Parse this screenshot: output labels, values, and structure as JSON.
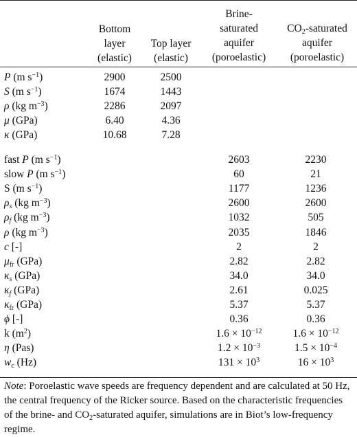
{
  "headers": {
    "col1": [
      "Bottom",
      "layer",
      "(elastic)"
    ],
    "col2": [
      "Top layer",
      "(elastic)"
    ],
    "col3": [
      "Brine-",
      "saturated",
      "aquifer",
      "(poroelastic)"
    ],
    "col4_line1_pre": "CO",
    "col4_line1_sub": "2",
    "col4_line1_post": "-saturated",
    "col4_rest": [
      "aquifer",
      "(poroelastic)"
    ]
  },
  "elastic_rows": [
    {
      "sym": "P",
      "unit": " (m s",
      "exp": "−1",
      "close": ")",
      "v1": "2900",
      "v2": "2500"
    },
    {
      "sym": "S",
      "unit": " (m s",
      "exp": "−1",
      "close": ")",
      "v1": "1674",
      "v2": "1443"
    },
    {
      "sym": "ρ",
      "unit": " (kg m",
      "exp": "−3",
      "close": ")",
      "v1": "2286",
      "v2": "2097"
    },
    {
      "sym": "μ",
      "unit": " (GPa)",
      "exp": "",
      "close": "",
      "v1": "6.40",
      "v2": "4.36"
    },
    {
      "sym": "κ",
      "unit": " (GPa)",
      "exp": "",
      "close": "",
      "v1": "10.68",
      "v2": "7.28"
    }
  ],
  "poro_rows": [
    {
      "pre": "fast ",
      "sym": "P",
      "sub": "",
      "unit": " (m s",
      "exp": "−1",
      "close": ")",
      "v3": "2603",
      "v4": "2230"
    },
    {
      "pre": "slow ",
      "sym": "P",
      "sub": "",
      "unit": " (m s",
      "exp": "−1",
      "close": ")",
      "v3": "60",
      "v4": "21"
    },
    {
      "pre": "S",
      "sym": "",
      "sub": "",
      "unit": " (m s",
      "exp": "−1",
      "close": ")",
      "v3": "1177",
      "v4": "1236"
    },
    {
      "pre": "",
      "sym": "ρ",
      "sub": "s",
      "unit": " (kg m",
      "exp": "−3",
      "close": ")",
      "v3": "2600",
      "v4": "2600"
    },
    {
      "pre": "",
      "sym": "ρ",
      "sub": "f",
      "unit": " (kg m",
      "exp": "−3",
      "close": ")",
      "v3": "1032",
      "v4": "505"
    },
    {
      "pre": "",
      "sym": "ρ",
      "sub": "",
      "unit": " (kg m",
      "exp": "−3",
      "close": ")",
      "v3": "2035",
      "v4": "1846"
    },
    {
      "pre": "",
      "sym": "c",
      "sub": "",
      "unit": " [-]",
      "exp": "",
      "close": "",
      "v3": "2",
      "v4": "2"
    },
    {
      "pre": "",
      "sym": "μ",
      "sub": "fr",
      "unit": " (GPa)",
      "exp": "",
      "close": "",
      "v3": "2.82",
      "v4": "2.82"
    },
    {
      "pre": "",
      "sym": "κ",
      "sub": "s",
      "unit": " (GPa)",
      "exp": "",
      "close": "",
      "v3": "34.0",
      "v4": "34.0"
    },
    {
      "pre": "",
      "sym": "κ",
      "sub": "f",
      "unit": " (GPa)",
      "exp": "",
      "close": "",
      "v3": "2.61",
      "v4": "0.025"
    },
    {
      "pre": "",
      "sym": "κ",
      "sub": "fr",
      "unit": " (GPa)",
      "exp": "",
      "close": "",
      "v3": "5.37",
      "v4": "5.37"
    },
    {
      "pre": "",
      "sym": "ϕ",
      "sub": "",
      "unit": " [-]",
      "exp": "",
      "close": "",
      "v3": "0.36",
      "v4": "0.36"
    },
    {
      "pre": "k",
      "sym": "",
      "sub": "",
      "unit": " (m",
      "exp": "2",
      "close": ")",
      "v3": "1.6 × 10",
      "v3e": "−12",
      "v4": "1.6 × 10",
      "v4e": "−12"
    },
    {
      "pre": "",
      "sym": "η",
      "sub": "",
      "unit": " (Pas)",
      "exp": "",
      "close": "",
      "v3": "1.2 × 10",
      "v3e": "−3",
      "v4": "1.5 × 10",
      "v4e": "−4"
    },
    {
      "pre": "",
      "sym": "w",
      "sub": "c",
      "unit": " (Hz)",
      "exp": "",
      "close": "",
      "v3": "131 × 10",
      "v3e": "3",
      "v4": "16 × 10",
      "v4e": "3"
    }
  ],
  "note": {
    "key": "Note",
    "part1": ": Poroelastic wave speeds are frequency dependent and are calculated at 50 Hz, the central frequency of the Ricker source. Based on the characteristic frequencies of the brine- and CO",
    "sub": "2",
    "part2": "-saturated aquifer, simulations are in Biot’s low-frequency regime."
  }
}
